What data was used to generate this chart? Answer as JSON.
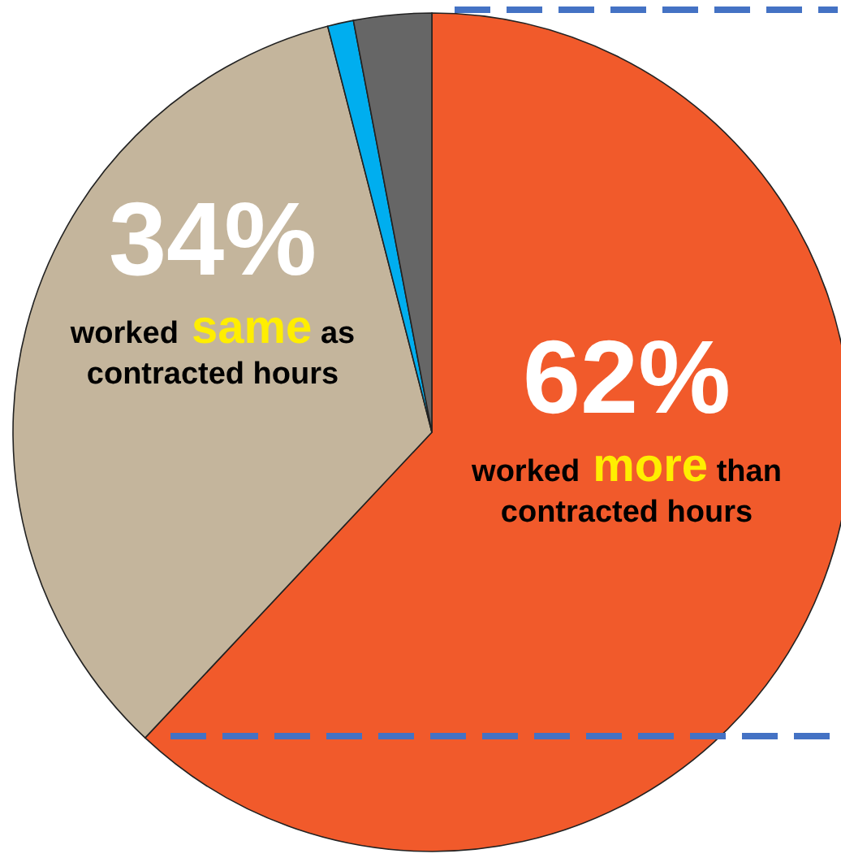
{
  "chart_data": {
    "type": "pie",
    "categories": [
      "worked more than contracted hours",
      "worked same as contracted hours",
      null,
      null
    ],
    "values": [
      62,
      34,
      1,
      3
    ],
    "colors": [
      "#f15a2b",
      "#c4b59c",
      "#00aeef",
      "#666666"
    ],
    "value_labels": [
      "62%",
      "34%",
      null,
      null
    ]
  }
}
